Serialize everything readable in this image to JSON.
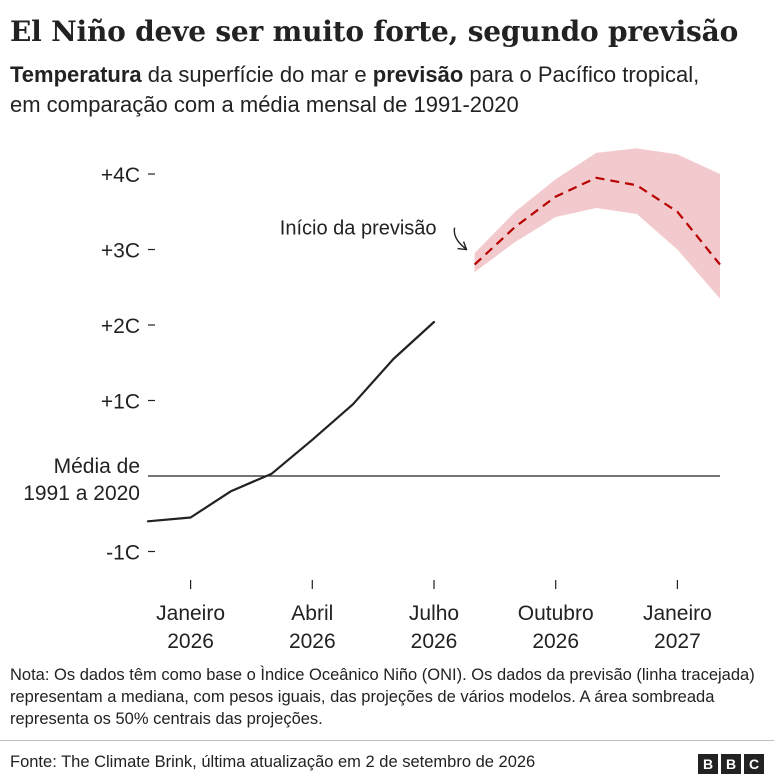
{
  "header": {
    "title": "El Niño deve ser muito forte, segundo previsão",
    "subtitle_part1": "Temperatura",
    "subtitle_part2": " da superfície do mar e ",
    "subtitle_part3": "previsão",
    "subtitle_part4": " para o Pacífico tropical, em comparação com a média mensal de 1991-2020"
  },
  "footer": {
    "note": "Nota: Os dados têm como base o Ìndice Oceânico Niño (ONI). Os dados da previsão (linha tracejada) representam a mediana, com pesos iguais, das projeções de vários modelos. A área sombreada representa os 50% centrais das projeções.",
    "source": "Fonte: The Climate Brink, última atualização em 2 de setembro de 2026",
    "logo_letters": [
      "B",
      "B",
      "C"
    ]
  },
  "colors": {
    "forecast": "#b80000",
    "forecast_band": "#f2c9cc",
    "observed": "#222222",
    "axis": "#222222",
    "baseline": "#222222"
  },
  "chart_data": {
    "type": "line",
    "title": "El Niño deve ser muito forte, segundo previsão",
    "xlabel": "",
    "ylabel": "",
    "ylim": [
      -1.3,
      4.3
    ],
    "y_ticks": [
      {
        "value": 4,
        "label": "+4C"
      },
      {
        "value": 3,
        "label": "+3C"
      },
      {
        "value": 2,
        "label": "+2C"
      },
      {
        "value": 1,
        "label": "+1C"
      },
      {
        "value": -1,
        "label": "-1C"
      }
    ],
    "baseline": {
      "value": 0,
      "label_line1": "Média de",
      "label_line2": "1991 a 2020"
    },
    "x_ticks": [
      {
        "month": 1,
        "line1": "Janeiro",
        "line2": "2026"
      },
      {
        "month": 4,
        "line1": "Abril",
        "line2": "2026"
      },
      {
        "month": 7,
        "line1": "Julho",
        "line2": "2026"
      },
      {
        "month": 10,
        "line1": "Outubro",
        "line2": "2026"
      },
      {
        "month": 13,
        "line1": "Janeiro",
        "line2": "2027"
      }
    ],
    "xlim": [
      -0.05,
      14.05
    ],
    "series": [
      {
        "name": "Temperatura",
        "style": "solid",
        "x": [
          -0.05,
          1,
          2,
          3,
          4,
          5,
          6,
          7
        ],
        "y": [
          -0.6,
          -0.55,
          -0.2,
          0.03,
          0.48,
          0.95,
          1.55,
          2.04
        ]
      },
      {
        "name": "previsão",
        "style": "dashed",
        "x": [
          8,
          9,
          10,
          11,
          12,
          13,
          14.05
        ],
        "y": [
          2.8,
          3.3,
          3.7,
          3.95,
          3.85,
          3.5,
          2.8
        ]
      }
    ],
    "forecast_band": {
      "x": [
        8,
        9,
        10,
        11,
        12,
        13,
        14.05
      ],
      "low": [
        2.7,
        3.1,
        3.43,
        3.55,
        3.47,
        3.0,
        2.35
      ],
      "high": [
        2.95,
        3.5,
        3.93,
        4.28,
        4.34,
        4.26,
        4.0
      ]
    },
    "annotation": {
      "text": "Início da previsão",
      "x": 8,
      "y": 2.8
    }
  }
}
